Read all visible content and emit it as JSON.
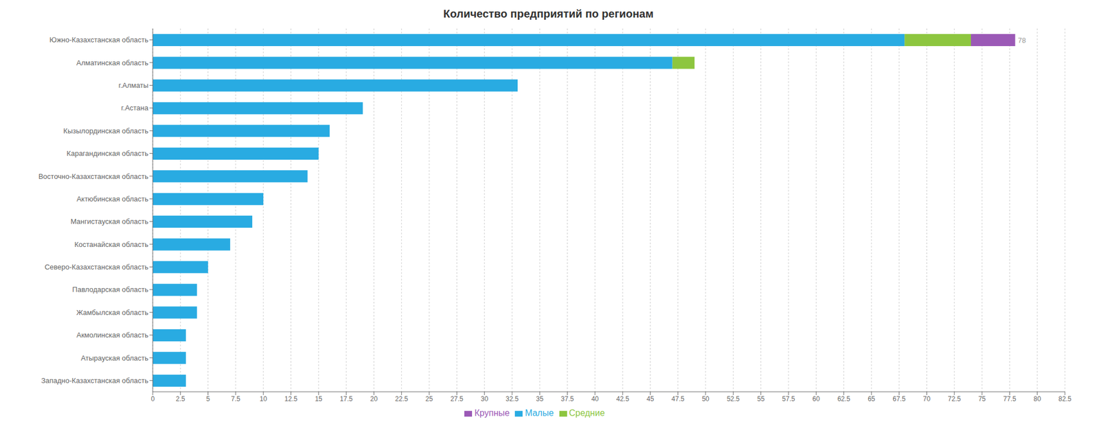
{
  "chart_data": {
    "type": "bar",
    "title": "Количество предприятий по регионам",
    "orientation": "horizontal",
    "stacked": true,
    "categories": [
      "Южно-Казахстанская область",
      "Алматинская область",
      "г.Алматы",
      "г.Астана",
      "Кызылординская область",
      "Карагандинская область",
      "Восточно-Казахстанская область",
      "Актюбинская область",
      "Мангистауская область",
      "Костанайская область",
      "Северо-Казахстанская область",
      "Павлодарская область",
      "Жамбылская область",
      "Акмолинская область",
      "Атырауская область",
      "Западно-Казахстанская область"
    ],
    "series": [
      {
        "name": "Малые",
        "color": "#29ABE2",
        "values": [
          68,
          47,
          33,
          19,
          16,
          15,
          14,
          10,
          9,
          7,
          5,
          4,
          4,
          3,
          3,
          3
        ]
      },
      {
        "name": "Средние",
        "color": "#8DC63F",
        "values": [
          6,
          2,
          0,
          0,
          0,
          0,
          0,
          0,
          0,
          0,
          0,
          0,
          0,
          0,
          0,
          0
        ]
      },
      {
        "name": "Крупные",
        "color": "#9B59B6",
        "values": [
          4,
          0,
          0,
          0,
          0,
          0,
          0,
          0,
          0,
          0,
          0,
          0,
          0,
          0,
          0,
          0
        ]
      }
    ],
    "totals": [
      78,
      49,
      33,
      19,
      16,
      15,
      14,
      10,
      9,
      7,
      5,
      4,
      4,
      3,
      3,
      3
    ],
    "xlim": [
      0,
      82.5
    ],
    "xticks": [
      0,
      2.5,
      5,
      7.5,
      10,
      12.5,
      15,
      17.5,
      20,
      22.5,
      25,
      27.5,
      30,
      32.5,
      35,
      37.5,
      40,
      42.5,
      45,
      47.5,
      50,
      52.5,
      55,
      57.5,
      60,
      62.5,
      65,
      67.5,
      70,
      72.5,
      75,
      77.5,
      80,
      82.5
    ],
    "grid": true,
    "legend": "bottom"
  }
}
